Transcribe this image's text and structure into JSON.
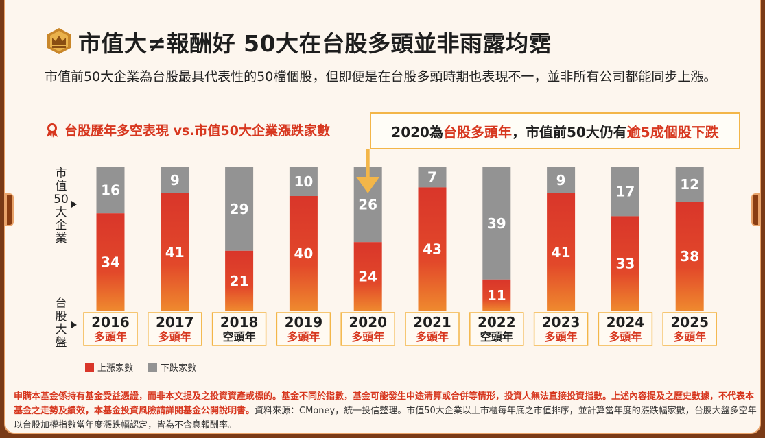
{
  "title": "市值大≠報酬好 50大在台股多頭並非雨露均霑",
  "intro": "市值前50大企業為台股最具代表性的50檔個股，但即便是在台股多頭時期也表現不一，並非所有公司都能同步上漲。",
  "subtitle": "台股歷年多空表現 vs.市值50大企業漲跌家數",
  "callout": {
    "part1": "2020為",
    "part2": "台股多頭年",
    "part3": "，市值前50大仍有",
    "part4": "逾5成個股下跌"
  },
  "row_label_top": "市值50大企業",
  "row_label_bottom": "台股大盤",
  "legend": {
    "up": "上漲家數",
    "down": "下跌家數"
  },
  "colors": {
    "up": "#d9362a",
    "up_bottom": "#ef8a2e",
    "down": "#939393",
    "accent": "#d7371f",
    "highlight_border": "#f3b649"
  },
  "chart_data": {
    "type": "bar",
    "stacked": true,
    "categories": [
      "2016",
      "2017",
      "2018",
      "2019",
      "2020",
      "2021",
      "2022",
      "2023",
      "2024",
      "2025"
    ],
    "market": [
      "多頭年",
      "多頭年",
      "空頭年",
      "多頭年",
      "多頭年",
      "多頭年",
      "空頭年",
      "多頭年",
      "多頭年",
      "多頭年"
    ],
    "series": [
      {
        "name": "上漲家數",
        "values": [
          34,
          41,
          21,
          40,
          24,
          43,
          11,
          41,
          33,
          38
        ]
      },
      {
        "name": "下跌家數",
        "values": [
          16,
          9,
          29,
          10,
          26,
          7,
          39,
          9,
          17,
          12
        ]
      }
    ],
    "ylim": [
      0,
      50
    ]
  },
  "disclaimer": {
    "red": "申購本基金係持有基金受益憑證，而非本文提及之投資資產或標的。基金不同於指數，基金可能發生中途清算或合併等情形，投資人無法直接投資指數。上述內容提及之歷史數據，不代表本基金之走勢及績效，本基金投資風險請詳閱基金公開說明書。",
    "normal": "資料來源：CMoney，統一投信整理。市值50大企業以上市櫃每年底之市值排序，並計算當年度的漲跌幅家數，台股大盤多空年以台股加權指數當年度漲跌幅認定，皆為不含息報酬率。"
  }
}
